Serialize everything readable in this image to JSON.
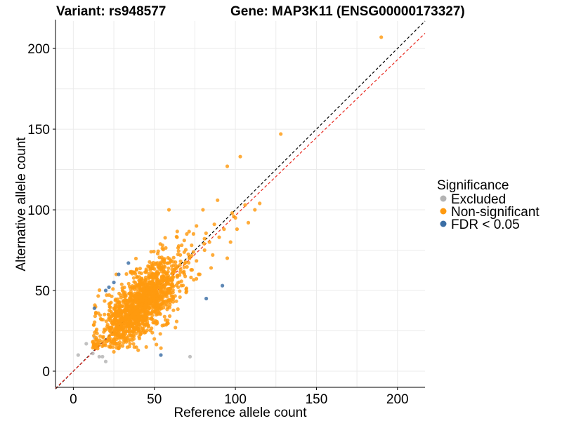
{
  "title_left": "Variant: rs948577",
  "title_right": "Gene: MAP3K11 (ENSG00000173327)",
  "chart_data": {
    "type": "scatter",
    "xlabel": "Reference allele count",
    "ylabel": "Alternative allele count",
    "xlim": [
      -11,
      217
    ],
    "ylim": [
      -10,
      217
    ],
    "xticks": [
      0,
      50,
      100,
      150,
      200
    ],
    "yticks": [
      0,
      50,
      100,
      150,
      200
    ],
    "grid": true,
    "legend": {
      "title": "Significance",
      "position": "right",
      "entries": [
        {
          "label": "Excluded",
          "color": "#b3b3b3"
        },
        {
          "label": "Non-significant",
          "color": "#ff9a0f"
        },
        {
          "label": "FDR < 0.05",
          "color": "#3a6ea5"
        }
      ]
    },
    "reference_lines": [
      {
        "style": "dashed",
        "color": "#000000",
        "slope": 1.0,
        "intercept": 0
      },
      {
        "style": "dashed",
        "color": "#e8271d",
        "slope": 0.965,
        "intercept": 0
      }
    ],
    "series": [
      {
        "name": "Excluded",
        "color": "#b3b3b3",
        "points": [
          [
            3,
            10
          ],
          [
            8,
            17
          ],
          [
            12,
            11
          ],
          [
            16,
            9
          ],
          [
            18,
            9
          ],
          [
            20,
            6
          ],
          [
            72,
            9
          ],
          [
            13,
            21
          ]
        ]
      },
      {
        "name": "FDR < 0.05",
        "color": "#3a6ea5",
        "points": [
          [
            13,
            39
          ],
          [
            20,
            50
          ],
          [
            22,
            52
          ],
          [
            25,
            55
          ],
          [
            28,
            60
          ],
          [
            34,
            67
          ],
          [
            54,
            10
          ],
          [
            82,
            45
          ],
          [
            92,
            53
          ]
        ]
      },
      {
        "name": "Non-significant",
        "color": "#ff9a0f",
        "generated": true,
        "cloud": {
          "n": 1400,
          "center": [
            42,
            42
          ],
          "spread_x": 13,
          "spread_y": 10,
          "corr": 0.7
        },
        "points": [
          [
            190,
            207
          ],
          [
            128,
            147
          ],
          [
            103,
            133
          ],
          [
            95,
            127
          ],
          [
            80,
            100
          ],
          [
            59,
            100
          ],
          [
            115,
            104
          ],
          [
            112,
            100
          ],
          [
            106,
            103
          ],
          [
            89,
            106
          ],
          [
            98,
            98
          ],
          [
            100,
            95
          ],
          [
            76,
            90
          ],
          [
            87,
            91
          ],
          [
            93,
            88
          ],
          [
            70,
            85
          ],
          [
            84,
            80
          ],
          [
            108,
            92
          ],
          [
            55,
            78
          ],
          [
            48,
            74
          ],
          [
            64,
            83
          ],
          [
            73,
            78
          ],
          [
            81,
            75
          ],
          [
            90,
            83
          ],
          [
            95,
            70
          ],
          [
            85,
            64
          ],
          [
            78,
            60
          ],
          [
            101,
            88
          ],
          [
            97,
            80
          ],
          [
            58,
            30
          ],
          [
            63,
            27
          ],
          [
            50,
            20
          ],
          [
            45,
            15
          ],
          [
            40,
            13
          ],
          [
            35,
            17
          ],
          [
            25,
            12
          ],
          [
            15,
            14
          ],
          [
            12,
            18
          ],
          [
            60,
            68
          ],
          [
            66,
            72
          ],
          [
            86,
            72
          ],
          [
            99,
            96
          ]
        ]
      }
    ]
  }
}
